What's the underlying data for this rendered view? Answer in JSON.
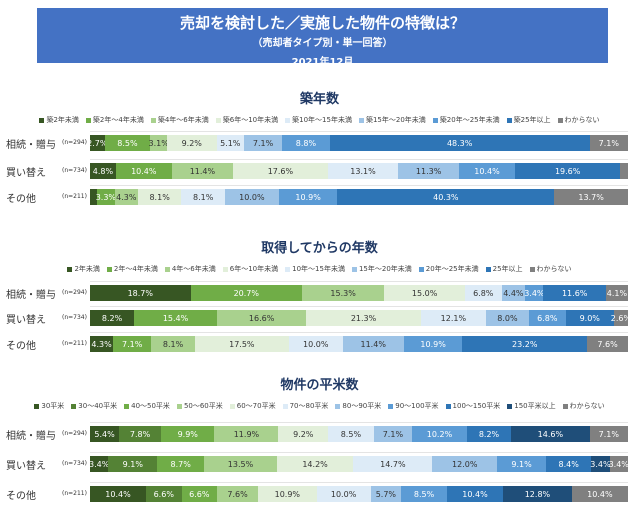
{
  "header": {
    "title": "売却を検討した／実施した物件の特徴は？",
    "subtitle": "（売却者タイプ別・単一回答）",
    "date": "2021年12月"
  },
  "chart_data": [
    {
      "type": "bar",
      "orientation": "horizontal",
      "stacked": "100%",
      "title": "築年数",
      "legend_position": "top",
      "categories": [
        "相続・贈与",
        "買い替え",
        "その他"
      ],
      "n_labels": [
        "(n=294)",
        "(n=734)",
        "(n=211)"
      ],
      "series": [
        {
          "name": "築2年未満",
          "color": "#375623",
          "values": [
            2.7,
            4.8,
            1.3
          ],
          "labels": [
            "2.7%",
            "4.8%",
            ""
          ]
        },
        {
          "name": "築2年～4年未満",
          "color": "#70AD47",
          "values": [
            8.5,
            10.4,
            3.3
          ],
          "labels": [
            "8.5%",
            "10.4%",
            "3.3%"
          ]
        },
        {
          "name": "築4年～6年未満",
          "color": "#A9D18E",
          "values": [
            3.1,
            11.4,
            4.3
          ],
          "labels": [
            "3.1%",
            "11.4%",
            "4.3%"
          ]
        },
        {
          "name": "築6年～10年未満",
          "color": "#E2EFDA",
          "values": [
            9.2,
            17.6,
            8.1
          ],
          "labels": [
            "9.2%",
            "17.6%",
            "8.1%"
          ]
        },
        {
          "name": "築10年～15年未満",
          "color": "#DDEBF7",
          "values": [
            5.1,
            13.1,
            8.1
          ],
          "labels": [
            "5.1%",
            "13.1%",
            "8.1%"
          ]
        },
        {
          "name": "築15年～20年未満",
          "color": "#9DC3E6",
          "values": [
            7.1,
            11.3,
            10.0
          ],
          "labels": [
            "7.1%",
            "11.3%",
            "10.0%"
          ]
        },
        {
          "name": "築20年～25年未満",
          "color": "#5B9BD5",
          "values": [
            8.8,
            10.4,
            10.9
          ],
          "labels": [
            "8.8%",
            "10.4%",
            "10.9%"
          ]
        },
        {
          "name": "築25年以上",
          "color": "#2E75B6",
          "values": [
            48.3,
            19.6,
            40.3
          ],
          "labels": [
            "48.3%",
            "19.6%",
            "40.3%"
          ]
        },
        {
          "name": "わからない",
          "color": "#808080",
          "values": [
            7.1,
            1.4,
            13.7
          ],
          "labels": [
            "7.1%",
            "",
            "13.7%"
          ]
        }
      ]
    },
    {
      "type": "bar",
      "orientation": "horizontal",
      "stacked": "100%",
      "title": "取得してからの年数",
      "legend_position": "top",
      "categories": [
        "相続・贈与",
        "買い替え",
        "その他"
      ],
      "n_labels": [
        "(n=294)",
        "(n=734)",
        "(n=211)"
      ],
      "series": [
        {
          "name": "2年未満",
          "color": "#375623",
          "values": [
            18.7,
            8.2,
            4.3
          ],
          "labels": [
            "18.7%",
            "8.2%",
            "4.3%"
          ]
        },
        {
          "name": "2年～4年未満",
          "color": "#70AD47",
          "values": [
            20.7,
            15.4,
            7.1
          ],
          "labels": [
            "20.7%",
            "15.4%",
            "7.1%"
          ]
        },
        {
          "name": "4年～6年未満",
          "color": "#A9D18E",
          "values": [
            15.3,
            16.6,
            8.1
          ],
          "labels": [
            "15.3%",
            "16.6%",
            "8.1%"
          ]
        },
        {
          "name": "6年～10年未満",
          "color": "#E2EFDA",
          "values": [
            15.0,
            21.3,
            17.5
          ],
          "labels": [
            "15.0%",
            "21.3%",
            "17.5%"
          ]
        },
        {
          "name": "10年～15年未満",
          "color": "#DDEBF7",
          "values": [
            6.8,
            12.1,
            10.0
          ],
          "labels": [
            "6.8%",
            "12.1%",
            "10.0%"
          ]
        },
        {
          "name": "15年～20年未満",
          "color": "#9DC3E6",
          "values": [
            4.4,
            8.0,
            11.4
          ],
          "labels": [
            "4.4%",
            "8.0%",
            "11.4%"
          ]
        },
        {
          "name": "20年～25年未満",
          "color": "#5B9BD5",
          "values": [
            3.4,
            6.8,
            10.9
          ],
          "labels": [
            "3.4%",
            "6.8%",
            "10.9%"
          ]
        },
        {
          "name": "25年以上",
          "color": "#2E75B6",
          "values": [
            11.6,
            9.0,
            23.2
          ],
          "labels": [
            "11.6%",
            "9.0%",
            "23.2%"
          ]
        },
        {
          "name": "わからない",
          "color": "#808080",
          "values": [
            4.1,
            2.6,
            7.6
          ],
          "labels": [
            "4.1%",
            "2.6%",
            "7.6%"
          ]
        }
      ]
    },
    {
      "type": "bar",
      "orientation": "horizontal",
      "stacked": "100%",
      "title": "物件の平米数",
      "legend_position": "top",
      "categories": [
        "相続・贈与",
        "買い替え",
        "その他"
      ],
      "n_labels": [
        "(n=294)",
        "(n=734)",
        "(n=211)"
      ],
      "series": [
        {
          "name": "30平米",
          "color": "#375623",
          "values": [
            5.4,
            3.4,
            10.4
          ],
          "labels": [
            "5.4%",
            "3.4%",
            "10.4%"
          ]
        },
        {
          "name": "30～40平米",
          "color": "#548235",
          "values": [
            7.8,
            9.1,
            6.6
          ],
          "labels": [
            "7.8%",
            "9.1%",
            "6.6%"
          ]
        },
        {
          "name": "40～50平米",
          "color": "#70AD47",
          "values": [
            9.9,
            8.7,
            6.6
          ],
          "labels": [
            "9.9%",
            "8.7%",
            "6.6%"
          ]
        },
        {
          "name": "50～60平米",
          "color": "#A9D18E",
          "values": [
            11.9,
            13.5,
            7.6
          ],
          "labels": [
            "11.9%",
            "13.5%",
            "7.6%"
          ]
        },
        {
          "name": "60～70平米",
          "color": "#E2EFDA",
          "values": [
            9.2,
            14.2,
            10.9
          ],
          "labels": [
            "9.2%",
            "14.2%",
            "10.9%"
          ]
        },
        {
          "name": "70～80平米",
          "color": "#DDEBF7",
          "values": [
            8.5,
            14.7,
            10.0
          ],
          "labels": [
            "8.5%",
            "14.7%",
            "10.0%"
          ]
        },
        {
          "name": "80～90平米",
          "color": "#9DC3E6",
          "values": [
            7.1,
            12.0,
            5.7
          ],
          "labels": [
            "7.1%",
            "12.0%",
            "5.7%"
          ]
        },
        {
          "name": "90～100平米",
          "color": "#5B9BD5",
          "values": [
            10.2,
            9.1,
            8.5
          ],
          "labels": [
            "10.2%",
            "9.1%",
            "8.5%"
          ]
        },
        {
          "name": "100～150平米",
          "color": "#2E75B6",
          "values": [
            8.2,
            8.4,
            10.4
          ],
          "labels": [
            "8.2%",
            "8.4%",
            "10.4%"
          ]
        },
        {
          "name": "150平米以上",
          "color": "#1F4E79",
          "values": [
            14.6,
            3.4,
            12.8
          ],
          "labels": [
            "14.6%",
            "3.4%",
            "12.8%"
          ]
        },
        {
          "name": "わからない",
          "color": "#808080",
          "values": [
            7.1,
            3.4,
            10.4
          ],
          "labels": [
            "7.1%",
            "3.4%",
            "10.4%"
          ]
        }
      ]
    }
  ]
}
